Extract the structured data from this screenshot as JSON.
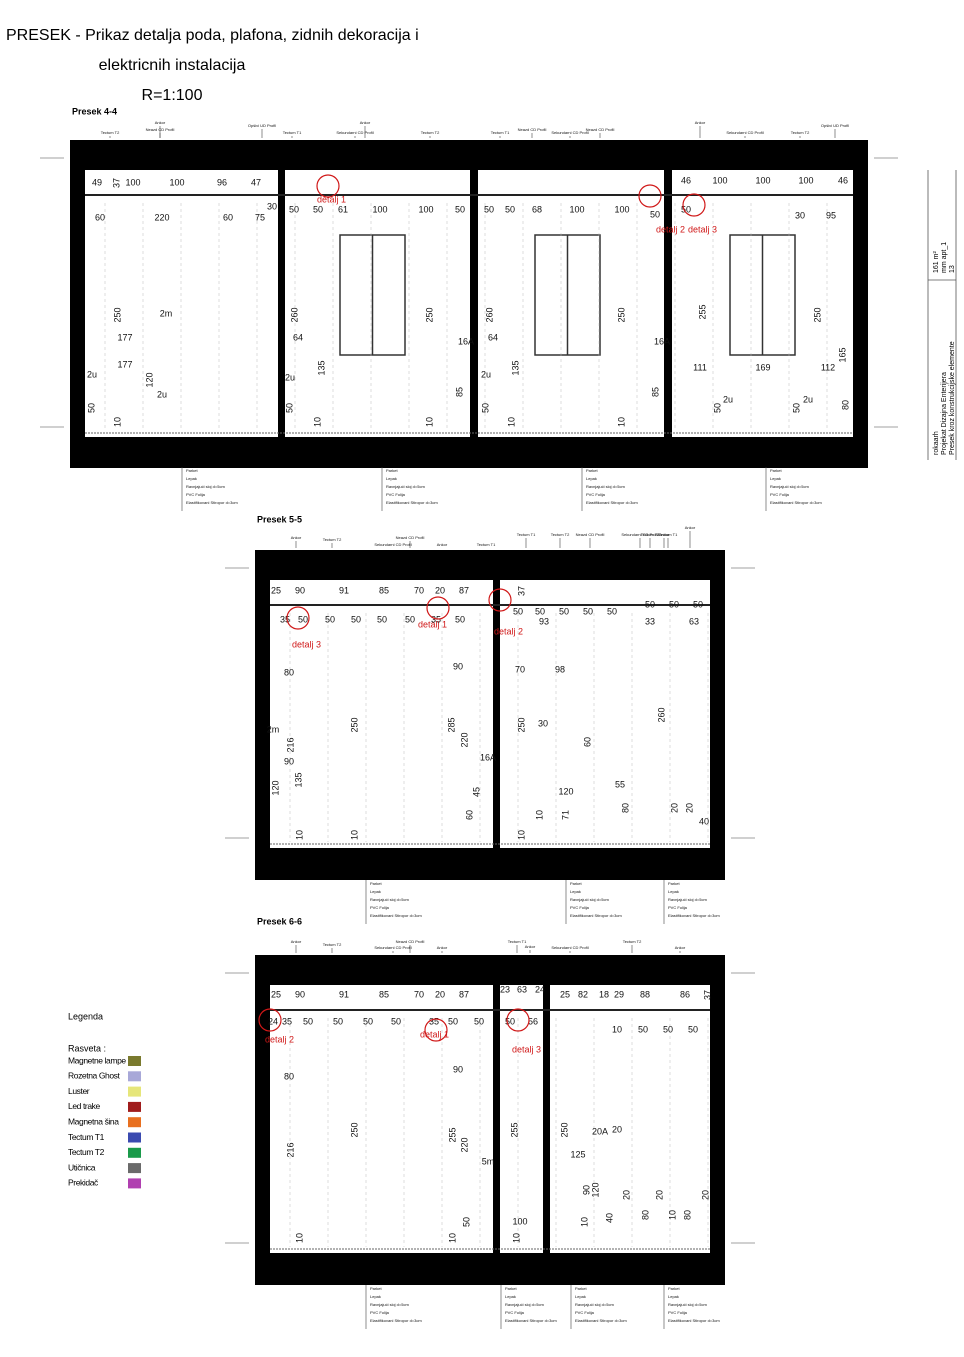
{
  "header": {
    "title_line1": "PRESEK - Prikaz detalja poda, plafona, zidnih dekoracija i",
    "title_line2": "elektricnih instalacija",
    "scale": "R=1:100"
  },
  "floor_layers": [
    "Parket",
    "Lepak",
    "Ravnjajući sloj d=5cm",
    "PVC Folija",
    "Elastifikovani Stiropor d=3cm"
  ],
  "sections": [
    {
      "label": "Presek 4-4",
      "annotations": [
        "Tectum T2",
        "Ankor",
        "Neazd CD Profil",
        "Opšivi UD Profil",
        "Tectum T1",
        "Ankor",
        "Sekundarni CD Profil",
        "Tectum T2",
        "Tectum T1",
        "Neazd CD Profil",
        "Sekundarni CD Profil",
        "Neazd CD Profil",
        "Ankor",
        "Sekundarni CD Profil",
        "Tectum T2",
        "Opšivi UD Profil"
      ],
      "dims": [
        "49",
        "37",
        "100",
        "100",
        "96",
        "47",
        "60",
        "220",
        "60",
        "75",
        "30",
        "50",
        "50",
        "61",
        "100",
        "100",
        "50",
        "50",
        "50",
        "68",
        "100",
        "100",
        "50",
        "46",
        "100",
        "100",
        "100",
        "46",
        "50",
        "30",
        "95",
        "177",
        "177",
        "250",
        "260",
        "250",
        "260",
        "250",
        "255",
        "250",
        "111",
        "169",
        "112",
        "16A",
        "16A",
        "64",
        "64",
        "120",
        "135",
        "135",
        "85",
        "85",
        "165",
        "50",
        "50",
        "50",
        "50",
        "50",
        "10",
        "10",
        "10",
        "10",
        "10",
        "80",
        "2u",
        "2u",
        "2u",
        "2u",
        "2u",
        "2u",
        "2m"
      ],
      "details": [
        "detalj 1",
        "detalj 2",
        "detalj 3"
      ]
    },
    {
      "label": "Presek 5-5",
      "annotations": [
        "Ankor",
        "Tectum T2",
        "Sekundarni CD Profil",
        "Neazd CD Profil",
        "Ankor",
        "Tectum T1",
        "Tectum T1",
        "Tectum T2",
        "Neazd CD Profil",
        "Sekundarni CD Profil",
        "Tectum T1",
        "Ankor",
        "Ankor",
        "Tectum T2"
      ],
      "dims": [
        "25",
        "90",
        "91",
        "85",
        "70",
        "20",
        "87",
        "37",
        "50",
        "50",
        "50",
        "50",
        "50",
        "50",
        "50",
        "50",
        "35",
        "50",
        "50",
        "50",
        "50",
        "50",
        "35",
        "50",
        "93",
        "33",
        "63",
        "80",
        "90",
        "98",
        "70",
        "30",
        "60",
        "285",
        "220",
        "250",
        "216",
        "260",
        "250",
        "120",
        "135",
        "90",
        "16A",
        "45",
        "120",
        "55",
        "40",
        "20",
        "20",
        "60",
        "10",
        "10",
        "10",
        "10",
        "71",
        "2m",
        "80"
      ],
      "details": [
        "detalj 3",
        "detalj 1",
        "detalj 2"
      ]
    },
    {
      "label": "Presek 6-6",
      "annotations": [
        "Ankor",
        "Tectum T2",
        "Sekundarni CD Profil",
        "Neazd CD Profil",
        "Ankor",
        "Tectum T1",
        "Ankor",
        "Sekundarni CD Profil",
        "Tectum T2",
        "Ankor",
        "Tectum T2"
      ],
      "dims": [
        "25",
        "90",
        "91",
        "85",
        "70",
        "20",
        "87",
        "23",
        "63",
        "24",
        "25",
        "82",
        "18",
        "29",
        "88",
        "86",
        "37",
        "24",
        "35",
        "50",
        "50",
        "50",
        "50",
        "35",
        "50",
        "50",
        "50",
        "56",
        "10",
        "50",
        "50",
        "50",
        "80",
        "90",
        "216",
        "250",
        "255",
        "220",
        "255",
        "250",
        "20A",
        "125",
        "5m",
        "100",
        "90",
        "120",
        "10",
        "10",
        "10",
        "50",
        "10",
        "40",
        "80",
        "80",
        "10",
        "20",
        "20",
        "20",
        "20"
      ],
      "details": [
        "detalj 2",
        "detalj 1",
        "detalj 3"
      ]
    }
  ],
  "legend": {
    "title": "Legenda",
    "group": "Rasveta :",
    "items": [
      {
        "label": "Magnetne lampe -",
        "color": "#7a7a2e"
      },
      {
        "label": "Rozetna Ghost",
        "color": "#a8a8d8"
      },
      {
        "label": "Luster",
        "color": "#e6e67a"
      },
      {
        "label": "Led trake",
        "color": "#a01c1c"
      },
      {
        "label": "Magnetna šina",
        "color": "#e87020"
      },
      {
        "label": "Tectum T1",
        "color": "#3a4ab0"
      },
      {
        "label": "Tectum T2",
        "color": "#1a9a4a"
      },
      {
        "label": "Utičnica",
        "color": "#6a6a6a"
      },
      {
        "label": "Prekidač",
        "color": "#b040b0"
      }
    ]
  },
  "title_block": [
    "rokaarh",
    "Projekat Dizajna Enterijera",
    "Presek kroz konstrukcijske elemente",
    "161 m²",
    "mm apt_1",
    "13"
  ]
}
